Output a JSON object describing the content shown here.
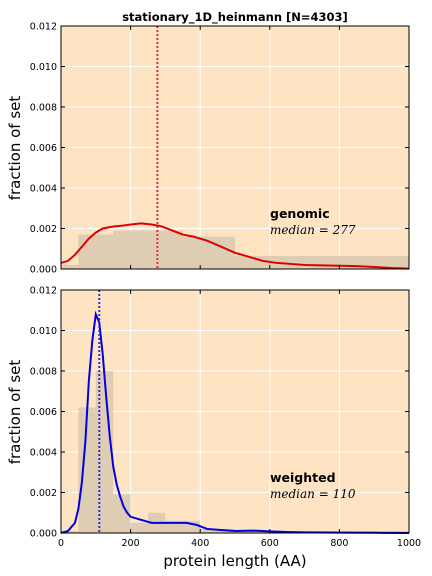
{
  "figure": {
    "title": "stationary_1D_heinmann [N=4303]",
    "xlabel": "protein length (AA)",
    "background": "#ffffff",
    "panel_background": "#ffe4c4",
    "grid_color": "#ffffff",
    "hist_color": "#d8c8b0"
  },
  "chart_data": [
    {
      "type": "line",
      "panel": "top",
      "title": "stationary_1D_heinmann [N=4303]",
      "ylabel": "fraction of set",
      "xlabel": "",
      "xlim": [
        0,
        1000
      ],
      "ylim": [
        0,
        0.012
      ],
      "xticks": [
        "0",
        "200",
        "400",
        "600",
        "800",
        "1000"
      ],
      "yticks": [
        "0.000",
        "0.002",
        "0.004",
        "0.006",
        "0.008",
        "0.010",
        "0.012"
      ],
      "grid": true,
      "annotation": {
        "label": "genomic",
        "median_text": "median = 277"
      },
      "median": 277,
      "median_color": "#e03030",
      "line_color": "#e00000",
      "histogram": {
        "edges": [
          0,
          50,
          150,
          250,
          350,
          500,
          1000
        ],
        "values": [
          0.0002,
          0.0017,
          0.0019,
          0.0019,
          0.0016,
          0.00065
        ]
      },
      "series": [
        {
          "x": [
            0,
            20,
            40,
            60,
            80,
            100,
            120,
            150,
            180,
            200,
            230,
            260,
            290,
            320,
            350,
            380,
            420,
            460,
            500,
            540,
            580,
            620,
            660,
            700,
            750,
            800,
            850,
            900,
            950,
            1000
          ],
          "values": [
            0.0003,
            0.0004,
            0.0007,
            0.0011,
            0.0015,
            0.0018,
            0.002,
            0.0021,
            0.00215,
            0.0022,
            0.00225,
            0.0022,
            0.0021,
            0.0019,
            0.0017,
            0.0016,
            0.0014,
            0.0011,
            0.0008,
            0.0006,
            0.0004,
            0.0003,
            0.00025,
            0.0002,
            0.00018,
            0.00016,
            0.00014,
            0.0001,
            5e-05,
            2e-05
          ]
        }
      ]
    },
    {
      "type": "line",
      "panel": "bottom",
      "title": "",
      "ylabel": "fraction of set",
      "xlabel": "protein length (AA)",
      "xlim": [
        0,
        1000
      ],
      "ylim": [
        0,
        0.012
      ],
      "xticks": [
        "0",
        "200",
        "400",
        "600",
        "800",
        "1000"
      ],
      "yticks": [
        "0.000",
        "0.002",
        "0.004",
        "0.006",
        "0.008",
        "0.010",
        "0.012"
      ],
      "grid": true,
      "annotation": {
        "label": "weighted",
        "median_text": "median = 110"
      },
      "median": 110,
      "median_color": "#3030d0",
      "line_color": "#0000e0",
      "histogram": {
        "edges": [
          0,
          50,
          100,
          150,
          200,
          250,
          300,
          350,
          400,
          500,
          1000
        ],
        "values": [
          0.0001,
          0.0062,
          0.008,
          0.0019,
          0.0005,
          0.001,
          0.0006,
          0.0006,
          0.0002,
          0.0001
        ]
      },
      "series": [
        {
          "x": [
            0,
            20,
            40,
            50,
            60,
            70,
            80,
            90,
            100,
            110,
            120,
            130,
            140,
            150,
            160,
            170,
            180,
            190,
            200,
            220,
            240,
            260,
            280,
            300,
            330,
            360,
            390,
            420,
            460,
            500,
            550,
            600,
            650,
            700,
            800,
            900,
            1000
          ],
          "values": [
            0.0,
            0.0001,
            0.0005,
            0.0012,
            0.0025,
            0.0045,
            0.0075,
            0.0095,
            0.0108,
            0.0104,
            0.0088,
            0.0067,
            0.0048,
            0.0033,
            0.0024,
            0.0018,
            0.0013,
            0.001,
            0.0008,
            0.0007,
            0.0006,
            0.0005,
            0.0005,
            0.0005,
            0.0005,
            0.0005,
            0.0004,
            0.0002,
            0.00015,
            0.0001,
            0.00012,
            8e-05,
            5e-05,
            3e-05,
            2e-05,
            1e-05,
            0.0
          ]
        }
      ]
    }
  ]
}
